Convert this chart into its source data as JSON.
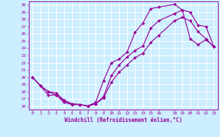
{
  "xlabel": "Windchill (Refroidissement éolien,°C)",
  "bg_color": "#cceeff",
  "line_color": "#990099",
  "grid_color": "#ffffff",
  "xlim": [
    -0.5,
    23.5
  ],
  "ylim": [
    15.5,
    30.5
  ],
  "xticks": [
    0,
    1,
    2,
    3,
    4,
    5,
    6,
    7,
    8,
    9,
    10,
    11,
    12,
    13,
    14,
    15,
    16,
    18,
    19,
    20,
    21,
    22,
    23
  ],
  "yticks": [
    16,
    17,
    18,
    19,
    20,
    21,
    22,
    23,
    24,
    25,
    26,
    27,
    28,
    29,
    30
  ],
  "line1_x": [
    0,
    1,
    2,
    3,
    4,
    5,
    6,
    7,
    8,
    9,
    10,
    11,
    12,
    13,
    14,
    15,
    16,
    18,
    19,
    20,
    21,
    22,
    23
  ],
  "line1_y": [
    20,
    18.8,
    18.0,
    17.5,
    16.5,
    16.2,
    16.2,
    16.0,
    16.5,
    19.5,
    22.0,
    22.5,
    23.5,
    26.2,
    27.5,
    29.5,
    29.7,
    30.1,
    29.3,
    25.3,
    24.5,
    25.2,
    24.2
  ],
  "line2_x": [
    0,
    1,
    2,
    3,
    4,
    5,
    6,
    7,
    8,
    9,
    10,
    11,
    12,
    13,
    14,
    15,
    16,
    18,
    19,
    20,
    21,
    22,
    23
  ],
  "line2_y": [
    20,
    18.8,
    17.5,
    17.5,
    16.7,
    16.3,
    16.2,
    16.0,
    16.3,
    17.3,
    20.2,
    21.7,
    22.8,
    23.7,
    24.3,
    26.8,
    27.8,
    28.8,
    29.3,
    29.0,
    27.2,
    27.0,
    24.2
  ],
  "line3_x": [
    0,
    1,
    2,
    3,
    4,
    5,
    6,
    7,
    8,
    9,
    10,
    11,
    12,
    13,
    14,
    15,
    16,
    18,
    19,
    20,
    21,
    22,
    23
  ],
  "line3_y": [
    20,
    18.8,
    18.0,
    17.8,
    16.8,
    16.3,
    16.2,
    16.0,
    16.3,
    17.1,
    19.3,
    20.7,
    21.7,
    22.7,
    23.3,
    24.8,
    25.8,
    27.8,
    28.3,
    27.8,
    26.3,
    25.3,
    24.2
  ]
}
